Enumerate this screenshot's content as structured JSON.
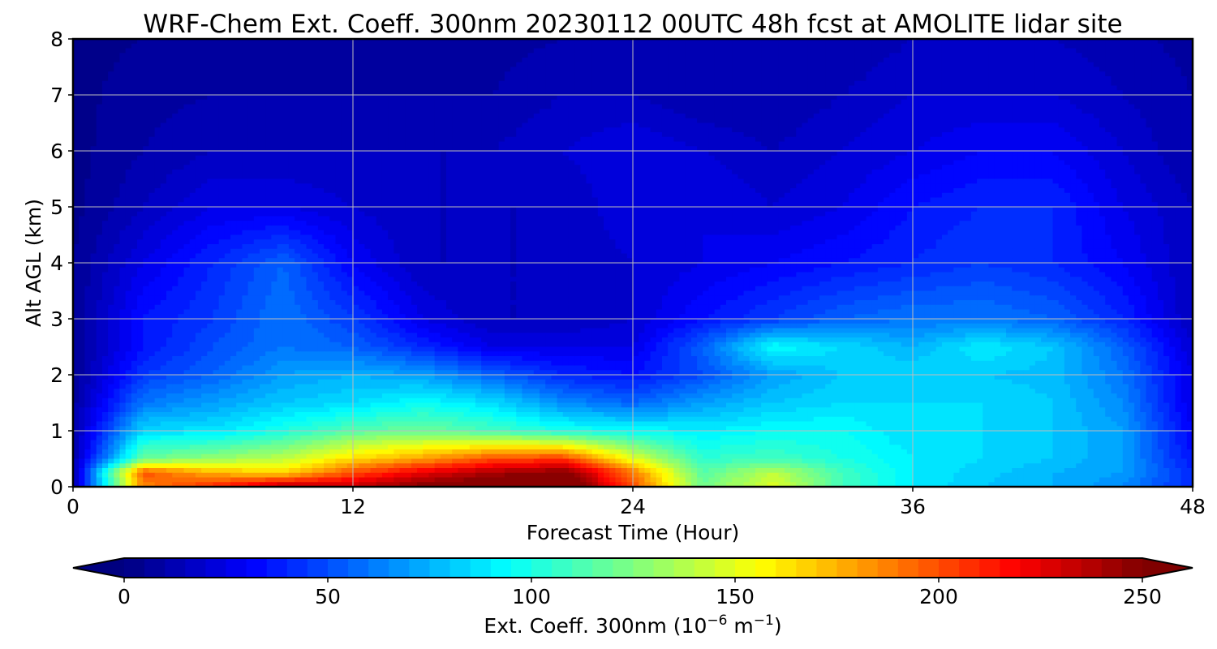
{
  "chart_data": {
    "type": "heatmap",
    "title": "WRF-Chem Ext. Coeff. 300nm  20230112 00UTC 48h fcst at AMOLITE lidar site",
    "xlabel": "Forecast Time (Hour)",
    "ylabel": "Alt AGL (km)",
    "xlim": [
      0,
      48
    ],
    "ylim": [
      0,
      8
    ],
    "xticks": [
      0,
      12,
      24,
      36,
      48
    ],
    "yticks": [
      0,
      1,
      2,
      3,
      4,
      5,
      6,
      7,
      8
    ],
    "grid": true,
    "colormap": "jet",
    "colorbar": {
      "label_prefix": "Ext. Coeff. 300nm  (10",
      "label_exp1": "−6",
      "label_mid": " m",
      "label_exp2": "−1",
      "label_suffix": ")",
      "range": [
        0,
        250
      ],
      "ticks": [
        0,
        50,
        100,
        150,
        200,
        250
      ],
      "extend": "both",
      "orientation": "horizontal",
      "position": "bottom"
    },
    "x_hours": [
      0,
      3,
      6,
      9,
      12,
      15,
      18,
      21,
      24,
      27,
      30,
      33,
      36,
      39,
      42,
      45,
      48
    ],
    "z_km": [
      0,
      0.25,
      0.5,
      1,
      1.5,
      2,
      2.5,
      3,
      4,
      5,
      6,
      7,
      8
    ],
    "values": [
      [
        10,
        185,
        210,
        240,
        235,
        250,
        260,
        270,
        200,
        120,
        150,
        110,
        90,
        80,
        75,
        65,
        40
      ],
      [
        10,
        200,
        175,
        165,
        200,
        225,
        240,
        250,
        190,
        115,
        140,
        110,
        90,
        82,
        75,
        70,
        40
      ],
      [
        10,
        120,
        130,
        140,
        165,
        180,
        200,
        205,
        150,
        105,
        110,
        100,
        90,
        85,
        80,
        70,
        35
      ],
      [
        10,
        85,
        88,
        100,
        115,
        120,
        110,
        100,
        95,
        90,
        95,
        95,
        85,
        85,
        80,
        70,
        30
      ],
      [
        8,
        60,
        70,
        80,
        85,
        95,
        85,
        65,
        55,
        70,
        80,
        85,
        85,
        85,
        80,
        65,
        25
      ],
      [
        5,
        45,
        55,
        70,
        75,
        70,
        55,
        40,
        35,
        50,
        70,
        80,
        85,
        80,
        78,
        60,
        25
      ],
      [
        5,
        35,
        50,
        60,
        55,
        40,
        25,
        25,
        25,
        55,
        95,
        85,
        75,
        90,
        80,
        55,
        20
      ],
      [
        5,
        35,
        45,
        60,
        45,
        25,
        15,
        15,
        20,
        35,
        45,
        55,
        60,
        60,
        55,
        40,
        15
      ],
      [
        5,
        25,
        40,
        55,
        30,
        15,
        15,
        15,
        20,
        25,
        30,
        35,
        40,
        45,
        40,
        30,
        15
      ],
      [
        3,
        15,
        25,
        25,
        20,
        15,
        15,
        15,
        25,
        25,
        20,
        25,
        35,
        40,
        40,
        25,
        15
      ],
      [
        3,
        10,
        15,
        15,
        15,
        15,
        15,
        20,
        25,
        20,
        15,
        20,
        25,
        30,
        30,
        20,
        10
      ],
      [
        3,
        8,
        10,
        10,
        10,
        10,
        10,
        15,
        15,
        10,
        10,
        15,
        20,
        20,
        20,
        15,
        10
      ],
      [
        3,
        5,
        8,
        8,
        8,
        8,
        8,
        10,
        10,
        10,
        10,
        10,
        15,
        15,
        15,
        12,
        8
      ]
    ]
  }
}
